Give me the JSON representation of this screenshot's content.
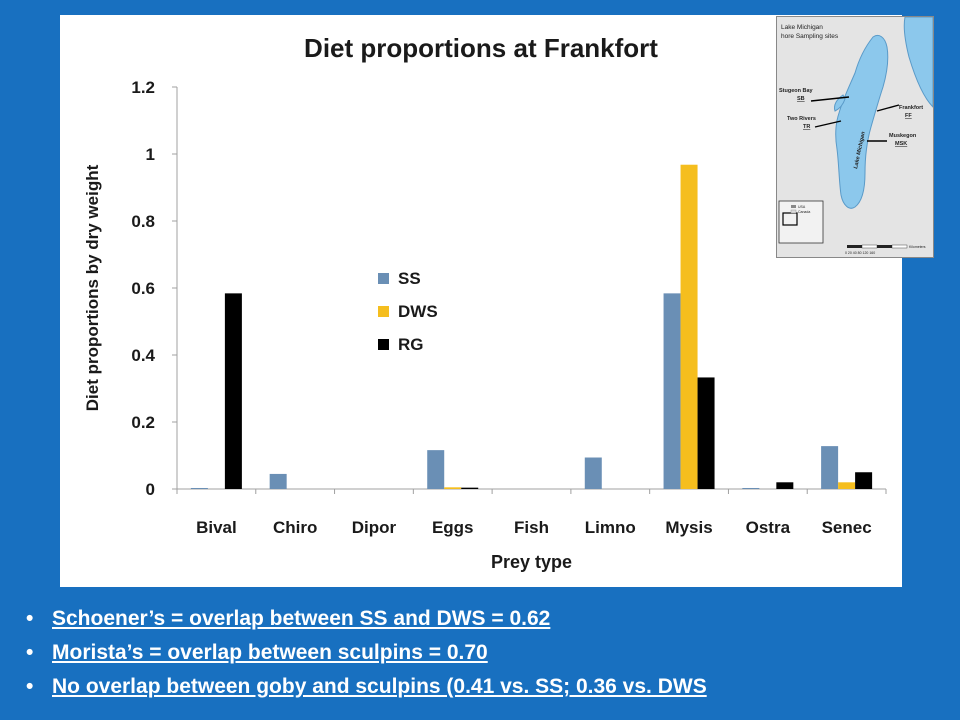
{
  "colors": {
    "background": "#1870c0",
    "panel": "#ffffff",
    "SS": "#6a8fb5",
    "DWS": "#f5be1e",
    "RG": "#000000",
    "map_lake": "#8cc8ec",
    "map_land": "#e4e4e4"
  },
  "chart_data": {
    "type": "bar",
    "title": "Diet proportions at Frankfort",
    "xlabel": "Prey  type",
    "ylabel": "Diet proportions by dry weight",
    "ylim": [
      0,
      1.2
    ],
    "yticks": [
      "0",
      "0.2",
      "0.4",
      "0.6",
      "0.8",
      "1",
      "1.2"
    ],
    "grid": false,
    "legend_position": "center-left",
    "categories": [
      "Bival",
      "Chiro",
      "Dipor",
      "Eggs",
      "Fish",
      "Limno",
      "Mysis",
      "Ostra",
      "Senec"
    ],
    "series": [
      {
        "name": "SS",
        "color": "#6a8fb5",
        "values": [
          0.003,
          0.045,
          0,
          0.116,
          0,
          0.094,
          0.584,
          0.003,
          0.128
        ]
      },
      {
        "name": "DWS",
        "color": "#f5be1e",
        "values": [
          0,
          0,
          0,
          0.005,
          0,
          0,
          0.968,
          0,
          0.02
        ]
      },
      {
        "name": "RG",
        "color": "#000000",
        "values": [
          0.584,
          0,
          0,
          0.004,
          0,
          0,
          0.333,
          0.02,
          0.05
        ]
      }
    ]
  },
  "map": {
    "title_line1": "Lake Michigan",
    "title_line2": "hore Sampling sites",
    "sites": [
      {
        "name": "Stugeon Bay",
        "code": "SB"
      },
      {
        "name": "Two Rivers",
        "code": "TR"
      },
      {
        "name": "Frankfort",
        "code": "FF"
      },
      {
        "name": "Muskegon",
        "code": "MSK"
      }
    ],
    "lake_label": "Lake Michigan",
    "legend_usa": "USA",
    "legend_canada": "Canada",
    "scale_label": "Kilometers",
    "scale_ticks": "0  20 40     80     120      160"
  },
  "bullets": [
    "Schoener’s = overlap between SS and DWS = 0.62",
    "Morista’s = overlap between sculpins = 0.70",
    "No overlap between goby and sculpins (0.41 vs. SS; 0.36 vs. DWS"
  ],
  "bullet_symbol": "•"
}
